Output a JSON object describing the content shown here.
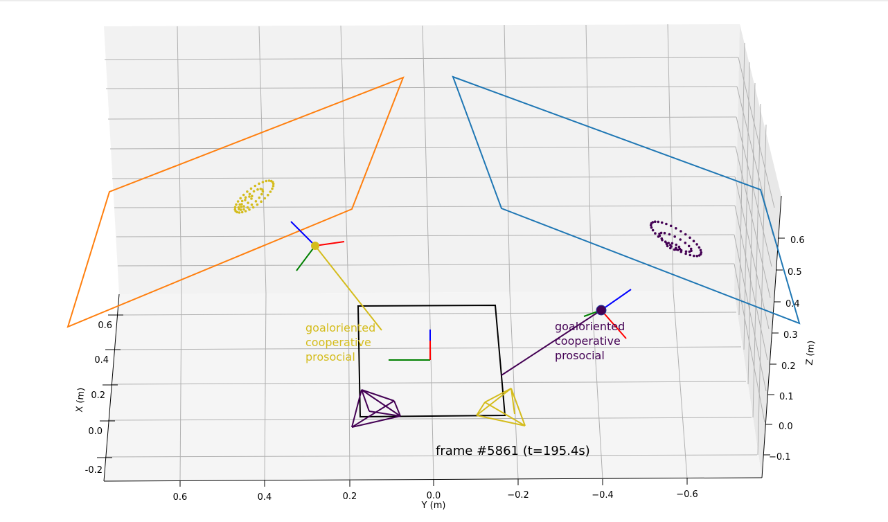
{
  "chart_data": {
    "type": "scatter3d",
    "title": "",
    "frame_label": "frame #5861 (t=195.4s)",
    "axes": {
      "x": {
        "label": "X (m)",
        "ticks": [
          "-0.2",
          "0.0",
          "0.2",
          "0.4",
          "0.6"
        ]
      },
      "y": {
        "label": "Y (m)",
        "ticks": [
          "0.6",
          "0.4",
          "0.2",
          "0.0",
          "−0.2",
          "−0.4",
          "−0.6"
        ]
      },
      "z": {
        "label": "Z (m)",
        "ticks": [
          "−0.1",
          "0.0",
          "0.1",
          "0.2",
          "0.3",
          "0.4",
          "0.5",
          "0.6"
        ]
      },
      "grid": true
    },
    "agents": [
      {
        "color": "#d4bc1c",
        "labels": [
          "goaloriented",
          "cooperative",
          "prosocial"
        ]
      },
      {
        "color": "#440154",
        "labels": [
          "goaloriented",
          "cooperative",
          "prosocial"
        ]
      }
    ],
    "colors": {
      "screen_left": "#ff7f0e",
      "screen_right": "#1f77b4",
      "table": "#000000",
      "axis_x": "#ff0000",
      "axis_y": "#008000",
      "axis_z": "#0000ff",
      "yellow": "#d4bc1c",
      "purple": "#440154"
    }
  }
}
